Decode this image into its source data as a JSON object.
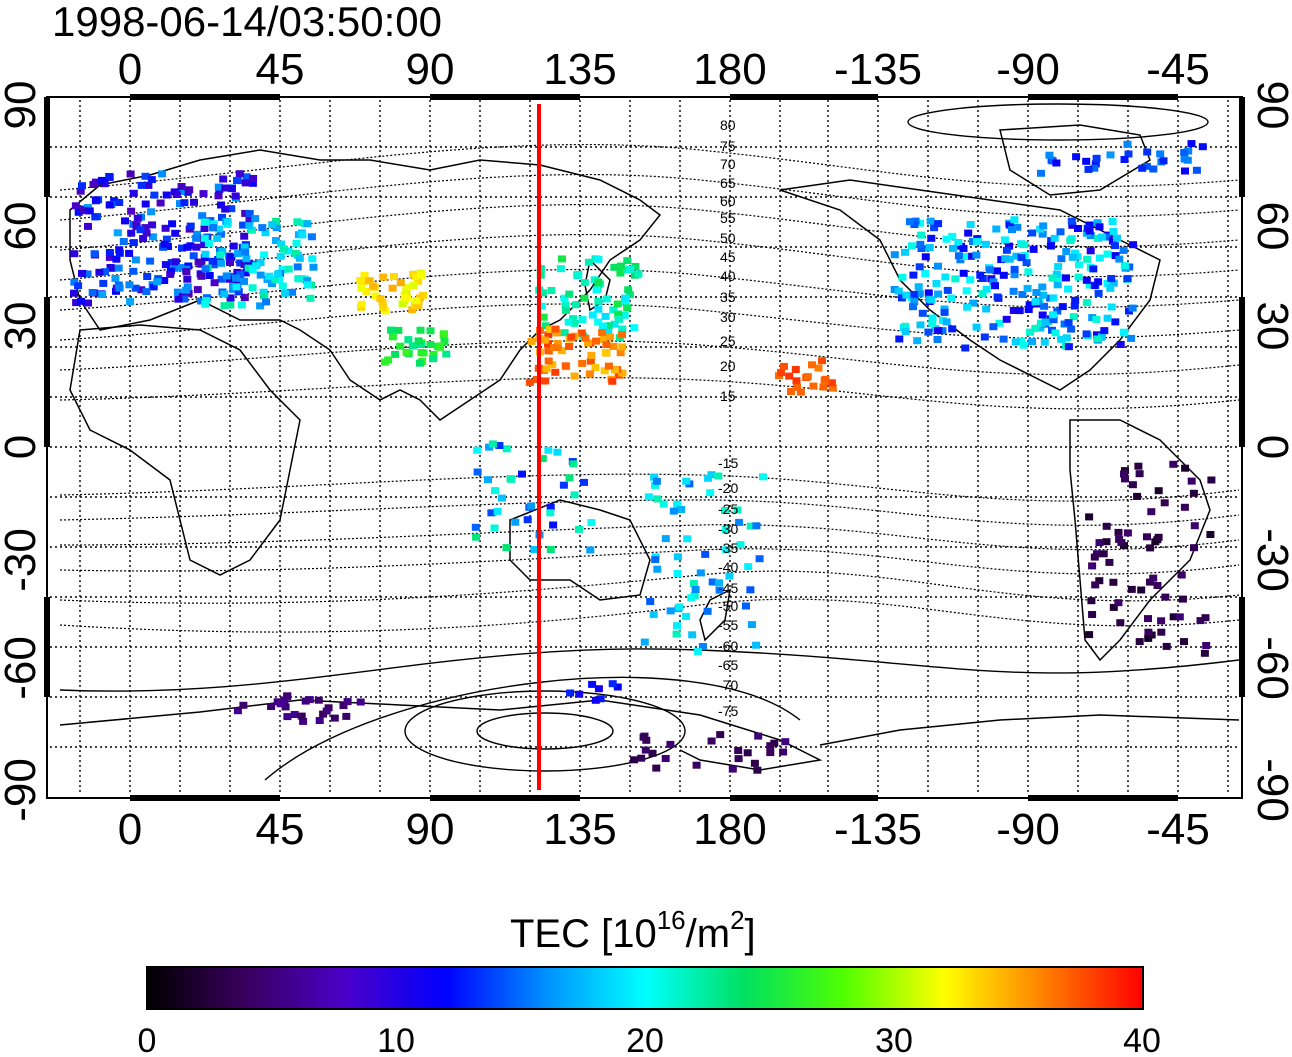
{
  "title": "1998-06-14/03:50:00",
  "map": {
    "lon_ticks_top": [
      "0",
      "45",
      "90",
      "135",
      "180",
      "-135",
      "-90",
      "-45"
    ],
    "lon_ticks_bottom": [
      "0",
      "45",
      "90",
      "135",
      "180",
      "-135",
      "-90",
      "-45"
    ],
    "lat_ticks_left": [
      "90",
      "60",
      "30",
      "0",
      "-30",
      "-60",
      "-90"
    ],
    "lat_ticks_right": [
      "90",
      "60",
      "30",
      "0",
      "-30",
      "-60",
      "-90"
    ],
    "contour_labels": [
      "80",
      "75",
      "70",
      "65",
      "60",
      "55",
      "50",
      "45",
      "40",
      "35",
      "30",
      "25",
      "20",
      "15",
      "-15",
      "-20",
      "-25",
      "-30",
      "-35",
      "-40",
      "-45",
      "-50",
      "-55",
      "-60",
      "-65",
      "-70",
      "-75"
    ],
    "line_color": "#ff0000"
  },
  "colorbar": {
    "label_prefix": "TEC  [10",
    "label_exp1": "16",
    "label_mid": "/m",
    "label_exp2": "2",
    "label_suffix": "]",
    "ticks": [
      "0",
      "10",
      "20",
      "30",
      "40"
    ],
    "min": 0,
    "max": 40,
    "stops": [
      "#000000",
      "#3a0060",
      "#4a00c8",
      "#0000ff",
      "#0090ff",
      "#00ffff",
      "#00e060",
      "#50ff00",
      "#ffff00",
      "#ff8000",
      "#ff0000"
    ]
  }
}
